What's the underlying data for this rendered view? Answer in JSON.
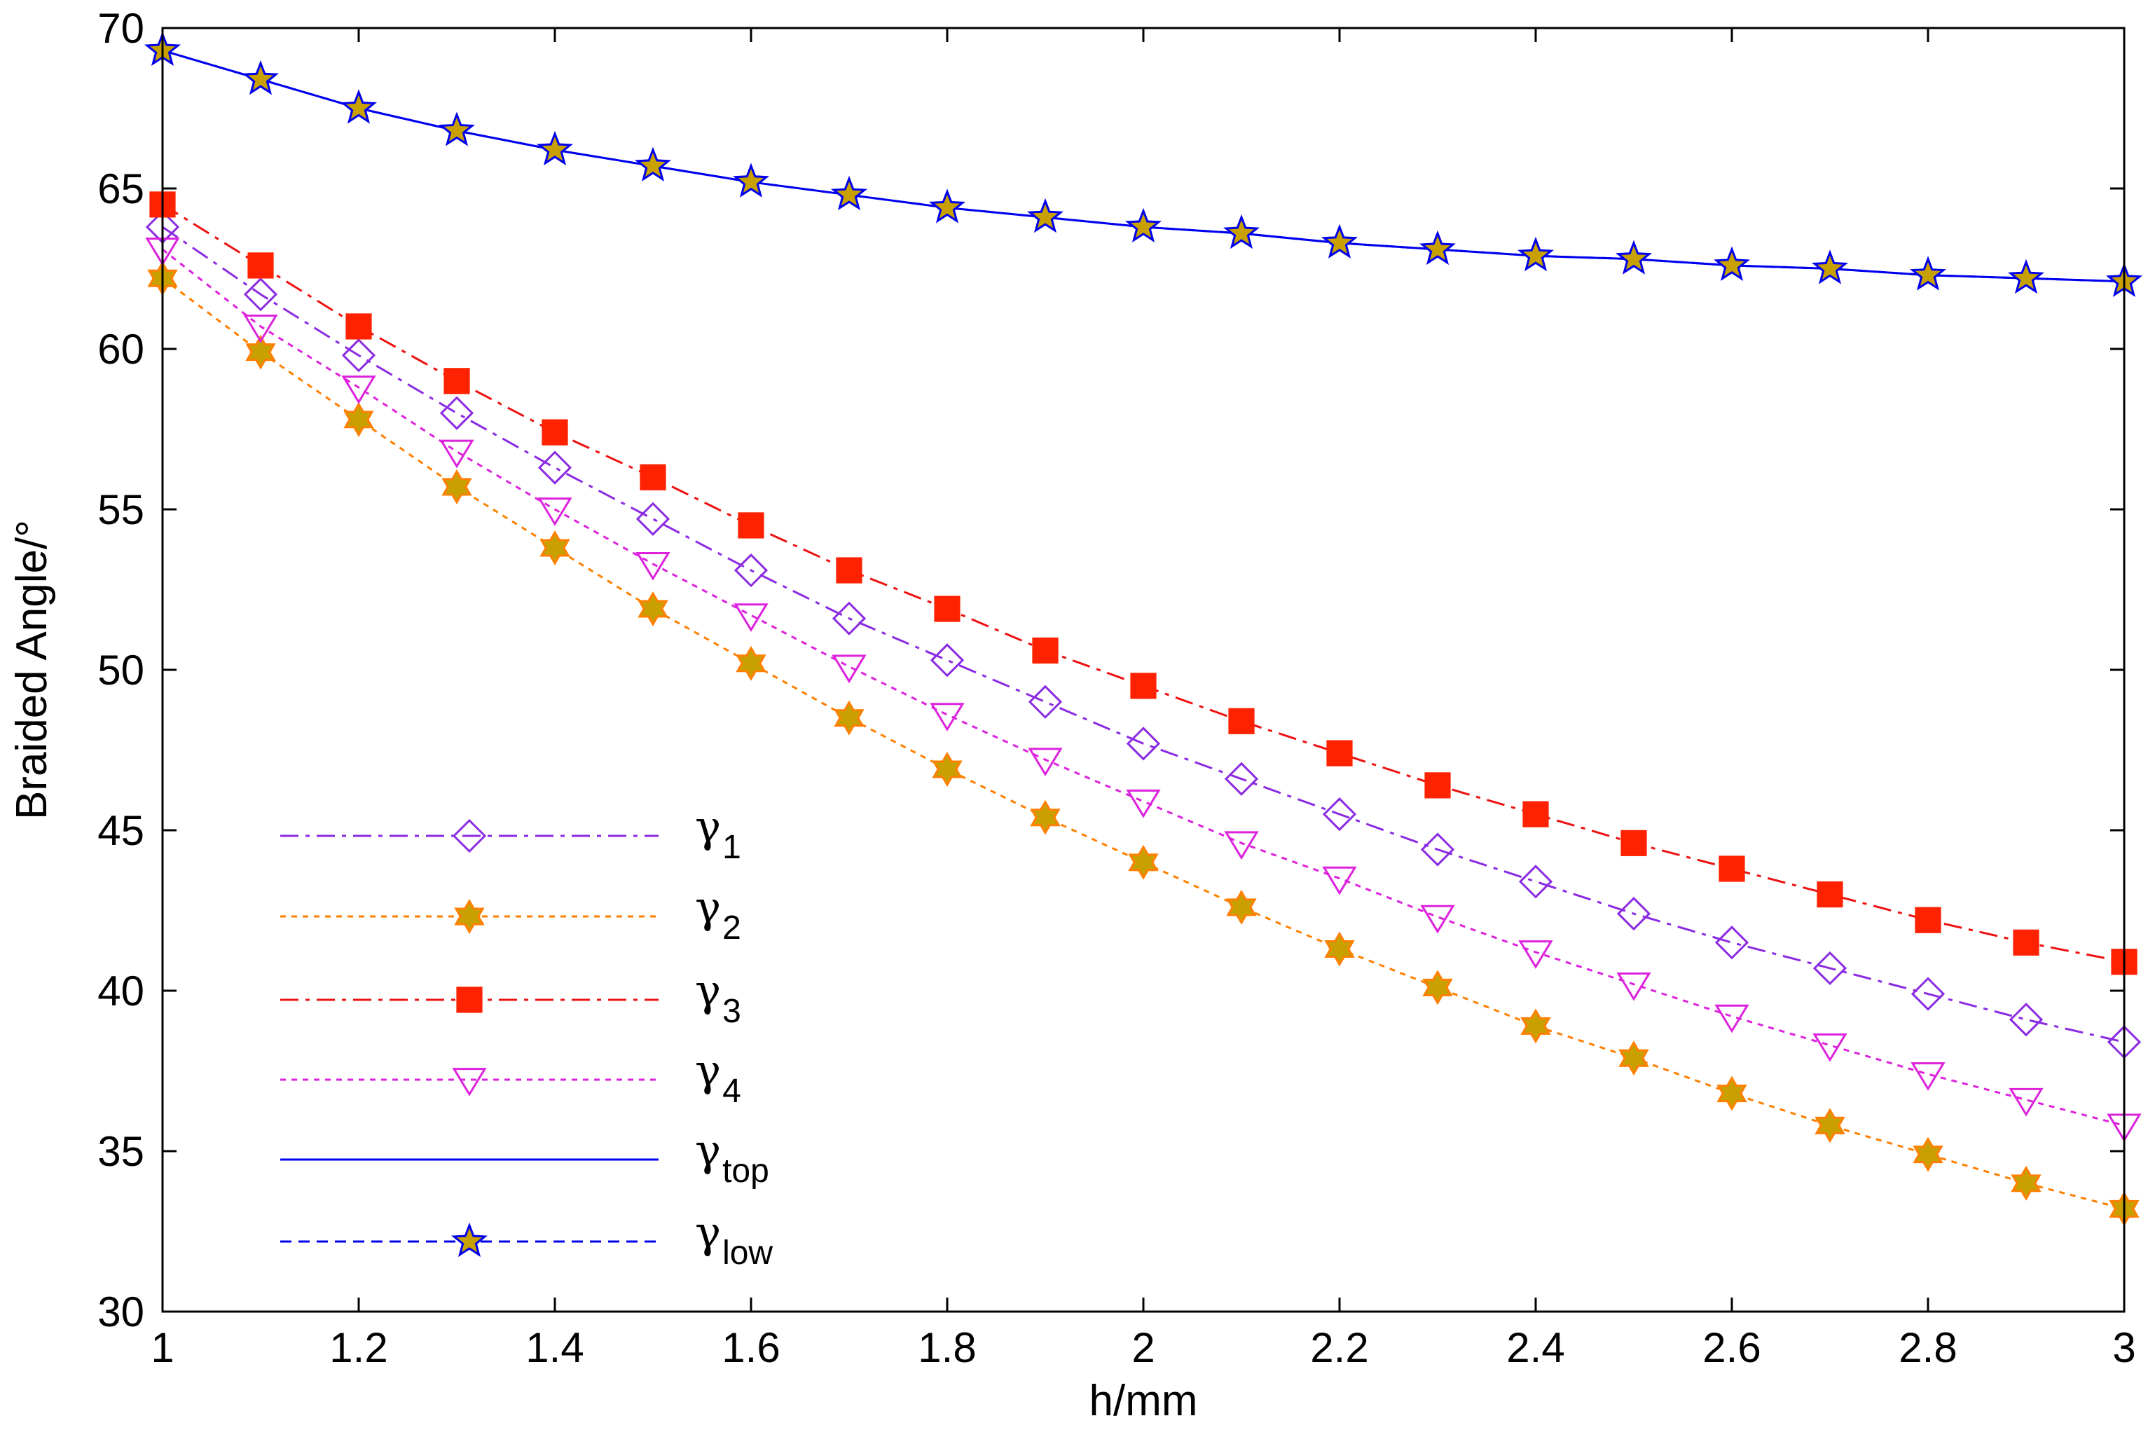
{
  "chart_data": {
    "type": "line",
    "title": "",
    "xlabel": "h/mm",
    "ylabel": "Braided Angle/°",
    "xlim": [
      1,
      3
    ],
    "ylim": [
      30,
      70
    ],
    "grid": false,
    "legend_position": "bottom-left",
    "xticks": [
      1,
      1.2,
      1.4,
      1.6,
      1.8,
      2,
      2.2,
      2.4,
      2.6,
      2.8,
      3
    ],
    "xtick_labels": [
      "1",
      "1.2",
      "1.4",
      "1.6",
      "1.8",
      "2",
      "2.2",
      "2.4",
      "2.6",
      "2.8",
      "3"
    ],
    "yticks": [
      30,
      35,
      40,
      45,
      50,
      55,
      60,
      65,
      70
    ],
    "ytick_labels": [
      "30",
      "35",
      "40",
      "45",
      "50",
      "55",
      "60",
      "65",
      "70"
    ],
    "x": [
      1.0,
      1.1,
      1.2,
      1.3,
      1.4,
      1.5,
      1.6,
      1.7,
      1.8,
      1.9,
      2.0,
      2.1,
      2.2,
      2.3,
      2.4,
      2.5,
      2.6,
      2.7,
      2.8,
      2.9,
      3.0
    ],
    "series": [
      {
        "name": "γ1",
        "symbol": "γ",
        "subscript": "1",
        "line": "dashdot",
        "marker": "diamond",
        "color": "#8b2be2",
        "marker_fill": "none",
        "values": [
          63.8,
          61.7,
          59.8,
          58.0,
          56.3,
          54.7,
          53.1,
          51.6,
          50.3,
          49.0,
          47.7,
          46.6,
          45.5,
          44.4,
          43.4,
          42.4,
          41.5,
          40.7,
          39.9,
          39.1,
          38.4
        ]
      },
      {
        "name": "γ2",
        "symbol": "γ",
        "subscript": "2",
        "line": "dotted",
        "marker": "hexagram",
        "color": "#ff7f00",
        "marker_fill": "#c8a000",
        "values": [
          62.2,
          59.9,
          57.8,
          55.7,
          53.8,
          51.9,
          50.2,
          48.5,
          46.9,
          45.4,
          44.0,
          42.6,
          41.3,
          40.1,
          38.9,
          37.9,
          36.8,
          35.8,
          34.9,
          34.0,
          33.2
        ]
      },
      {
        "name": "γ3",
        "symbol": "γ",
        "subscript": "3",
        "line": "dashdot",
        "marker": "square",
        "color": "#ee1111",
        "marker_fill": "#ff2200",
        "values": [
          64.5,
          62.6,
          60.7,
          59.0,
          57.4,
          56.0,
          54.5,
          53.1,
          51.9,
          50.6,
          49.5,
          48.4,
          47.4,
          46.4,
          45.5,
          44.6,
          43.8,
          43.0,
          42.2,
          41.5,
          40.9
        ]
      },
      {
        "name": "γ4",
        "symbol": "γ",
        "subscript": "4",
        "line": "dotted",
        "marker": "triangle-down",
        "color": "#dd22dd",
        "marker_fill": "none",
        "values": [
          63.1,
          60.7,
          58.8,
          56.8,
          55.0,
          53.3,
          51.7,
          50.1,
          48.6,
          47.2,
          45.9,
          44.6,
          43.5,
          42.3,
          41.2,
          40.2,
          39.2,
          38.3,
          37.4,
          36.6,
          35.8
        ]
      },
      {
        "name": "γtop",
        "symbol": "γ",
        "subscript": "top",
        "line": "solid",
        "marker": "none",
        "color": "#0000ee",
        "marker_fill": "none",
        "values": [
          69.3,
          68.4,
          67.5,
          66.8,
          66.2,
          65.7,
          65.2,
          64.8,
          64.4,
          64.1,
          63.8,
          63.6,
          63.3,
          63.1,
          62.9,
          62.8,
          62.6,
          62.5,
          62.3,
          62.2,
          62.1
        ]
      },
      {
        "name": "γlow",
        "symbol": "γ",
        "subscript": "low",
        "line": "dashed",
        "marker": "pentagram",
        "color": "#0000ee",
        "marker_fill": "#c8a000",
        "values": [
          69.3,
          68.4,
          67.5,
          66.8,
          66.2,
          65.7,
          65.2,
          64.8,
          64.4,
          64.1,
          63.8,
          63.6,
          63.3,
          63.1,
          62.9,
          62.8,
          62.6,
          62.5,
          62.3,
          62.2,
          62.1
        ]
      }
    ]
  }
}
